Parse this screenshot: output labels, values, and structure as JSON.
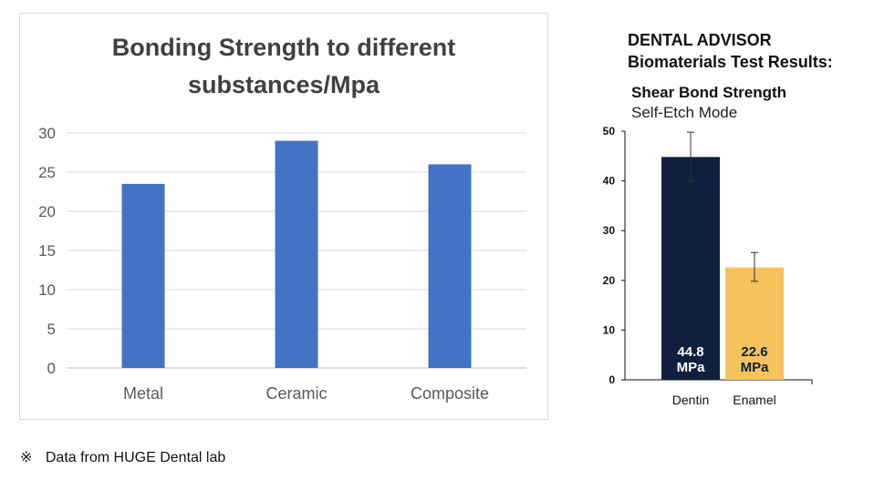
{
  "chart_data": [
    {
      "type": "bar",
      "title": "Bonding Strength to different substances/Mpa",
      "title_lines": [
        "Bonding Strength to different",
        "substances/Mpa"
      ],
      "categories": [
        "Metal",
        "Ceramic",
        "Composite"
      ],
      "values": [
        23.5,
        29,
        26
      ],
      "ylim": [
        0,
        30
      ],
      "yticks": [
        0,
        5,
        10,
        15,
        20,
        25,
        30
      ],
      "xlabel": "",
      "ylabel": "",
      "grid": true,
      "bar_color": "#4472C4"
    },
    {
      "type": "bar",
      "brand": "DENTAL ADVISOR",
      "title": "Biomaterials Test Results:",
      "subtitle": "Shear Bond Strength",
      "subtitle2": "Self-Etch Mode",
      "categories": [
        "Dentin",
        "Enamel"
      ],
      "values": [
        44.8,
        22.6
      ],
      "error_low": [
        40,
        19.8
      ],
      "error_high": [
        49.8,
        25.6
      ],
      "value_labels": [
        "44.8",
        "22.6"
      ],
      "unit_labels": [
        "MPa",
        "MPa"
      ],
      "bar_colors": [
        "#0f1f3d",
        "#f5c25b"
      ],
      "label_colors": [
        "#ffffff",
        "#0f1f3d"
      ],
      "ylim": [
        0,
        50
      ],
      "yticks": [
        0,
        10,
        20,
        30,
        40,
        50
      ]
    }
  ],
  "footnote": {
    "symbol": "※",
    "text": "Data from HUGE Dental lab"
  }
}
